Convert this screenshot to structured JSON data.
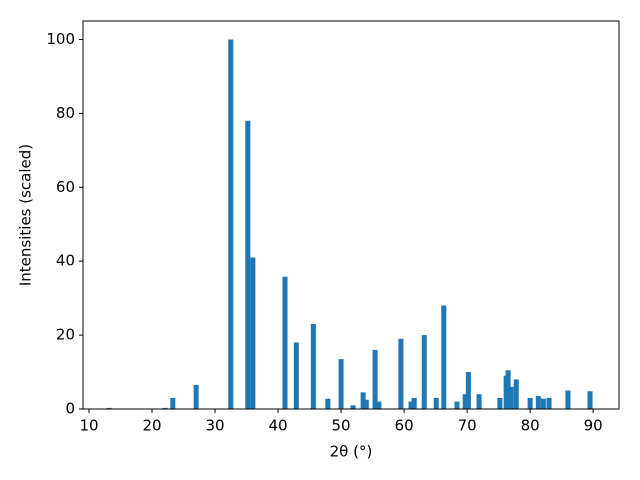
{
  "chart_data": {
    "type": "bar",
    "x_label": "2θ (°)",
    "y_label": "Intensities (scaled)",
    "x": [
      13.2,
      22.1,
      23.3,
      27.0,
      32.5,
      35.2,
      36.0,
      41.1,
      42.9,
      45.6,
      47.9,
      50.0,
      51.9,
      53.5,
      54.0,
      55.4,
      56.0,
      59.5,
      61.1,
      61.6,
      63.2,
      65.1,
      66.3,
      68.4,
      69.7,
      70.2,
      71.9,
      75.2,
      76.2,
      76.5,
      77.0,
      77.8,
      80.0,
      81.3,
      82.1,
      83.0,
      86.0,
      89.5
    ],
    "values": [
      0.3,
      0.3,
      3,
      6.5,
      100,
      78,
      41,
      35.8,
      18,
      23,
      2.8,
      13.5,
      1,
      4.5,
      2.5,
      16,
      2,
      19,
      2,
      3,
      20,
      3,
      28,
      2,
      4,
      10,
      4,
      3,
      9,
      10.5,
      6,
      8,
      3,
      3.5,
      2.8,
      3,
      5,
      4.8
    ],
    "bar_width": 0.8,
    "color": "#1f77b4",
    "xlim": [
      9.05,
      94.1
    ],
    "xticks": [
      10,
      20,
      30,
      40,
      50,
      60,
      70,
      80,
      90
    ],
    "ylim": [
      0,
      105
    ],
    "yticks": [
      0,
      20,
      40,
      60,
      80,
      100
    ],
    "grid": false
  }
}
